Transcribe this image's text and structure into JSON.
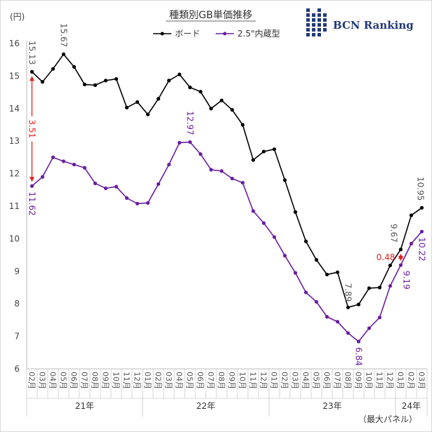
{
  "chart_data": {
    "type": "line",
    "title": "種類別GB単価推移",
    "ylabel": "(円)",
    "ylim": [
      6,
      16
    ],
    "yticks": [
      "6",
      "7",
      "8",
      "9",
      "10",
      "11",
      "12",
      "13",
      "14",
      "15",
      "16"
    ],
    "grid": false,
    "legend_position": "top-center",
    "categories": [
      "21-02",
      "21-03",
      "21-04",
      "21-05",
      "21-06",
      "21-07",
      "21-08",
      "21-09",
      "21-10",
      "21-11",
      "21-12",
      "22-01",
      "22-02",
      "22-03",
      "22-04",
      "22-05",
      "22-06",
      "22-07",
      "22-08",
      "22-09",
      "22-10",
      "22-11",
      "22-12",
      "23-01",
      "23-02",
      "23-03",
      "23-04",
      "23-05",
      "23-06",
      "23-07",
      "23-08",
      "23-09",
      "23-10",
      "23-11",
      "23-12",
      "24-01",
      "24-02",
      "24-03"
    ],
    "x_tick_labels": [
      "02月",
      "03月",
      "04月",
      "05月",
      "06月",
      "07月",
      "08月",
      "09月",
      "10月",
      "11月",
      "12月",
      "01月",
      "02月",
      "03月",
      "04月",
      "05月",
      "06月",
      "07月",
      "08月",
      "09月",
      "10月",
      "11月",
      "12月",
      "01月",
      "02月",
      "03月",
      "04月",
      "05月",
      "06月",
      "07月",
      "08月",
      "09月",
      "10月",
      "11月",
      "12月",
      "01月",
      "02月",
      "03月"
    ],
    "year_groups": [
      {
        "label": "21年",
        "start": 0,
        "end": 10
      },
      {
        "label": "22年",
        "start": 11,
        "end": 22
      },
      {
        "label": "23年",
        "start": 23,
        "end": 34
      },
      {
        "label": "24年",
        "start": 35,
        "end": 37
      }
    ],
    "series": [
      {
        "name": "ボード",
        "color": "#000000",
        "values": [
          15.13,
          14.82,
          15.22,
          15.67,
          15.28,
          14.74,
          14.72,
          14.86,
          14.91,
          14.03,
          14.2,
          13.82,
          14.3,
          14.86,
          15.05,
          14.65,
          14.52,
          14.0,
          14.25,
          13.96,
          13.5,
          12.42,
          12.68,
          12.75,
          11.8,
          10.82,
          9.92,
          9.35,
          8.9,
          8.97,
          7.89,
          7.98,
          8.48,
          8.5,
          9.18,
          9.67,
          10.72,
          10.95
        ]
      },
      {
        "name": "2.5\"内蔵型",
        "color": "#6a1fa0",
        "values": [
          11.62,
          11.9,
          12.5,
          12.38,
          12.28,
          12.18,
          11.7,
          11.55,
          11.6,
          11.25,
          11.08,
          11.1,
          11.68,
          12.28,
          12.95,
          12.97,
          12.6,
          12.12,
          12.08,
          11.85,
          11.72,
          10.85,
          10.48,
          10.05,
          9.48,
          8.95,
          8.35,
          8.06,
          7.6,
          7.45,
          7.1,
          6.84,
          7.25,
          7.58,
          8.55,
          9.19,
          9.85,
          10.22
        ]
      }
    ],
    "data_labels": [
      {
        "series": 0,
        "index": 0,
        "text": "15.13"
      },
      {
        "series": 0,
        "index": 3,
        "text": "15.67"
      },
      {
        "series": 0,
        "index": 30,
        "text": "7.89"
      },
      {
        "series": 0,
        "index": 35,
        "text": "9.67"
      },
      {
        "series": 0,
        "index": 37,
        "text": "10.95"
      },
      {
        "series": 1,
        "index": 0,
        "text": "11.62"
      },
      {
        "series": 1,
        "index": 15,
        "text": "12.97"
      },
      {
        "series": 1,
        "index": 31,
        "text": "6.84"
      },
      {
        "series": 1,
        "index": 35,
        "text": "9.19"
      },
      {
        "series": 1,
        "index": 37,
        "text": "10.22"
      }
    ],
    "annotations": [
      {
        "text": "3.51",
        "index": 0,
        "from": 15.13,
        "to": 11.62,
        "color": "#e02020"
      },
      {
        "text": "0.48",
        "index": 35,
        "from": 9.67,
        "to": 9.19,
        "color": "#e02020"
      }
    ],
    "footnote": "（最大パネル）"
  },
  "branding": {
    "logo_text": "BCN Ranking",
    "logo_color": "#233a7a"
  }
}
